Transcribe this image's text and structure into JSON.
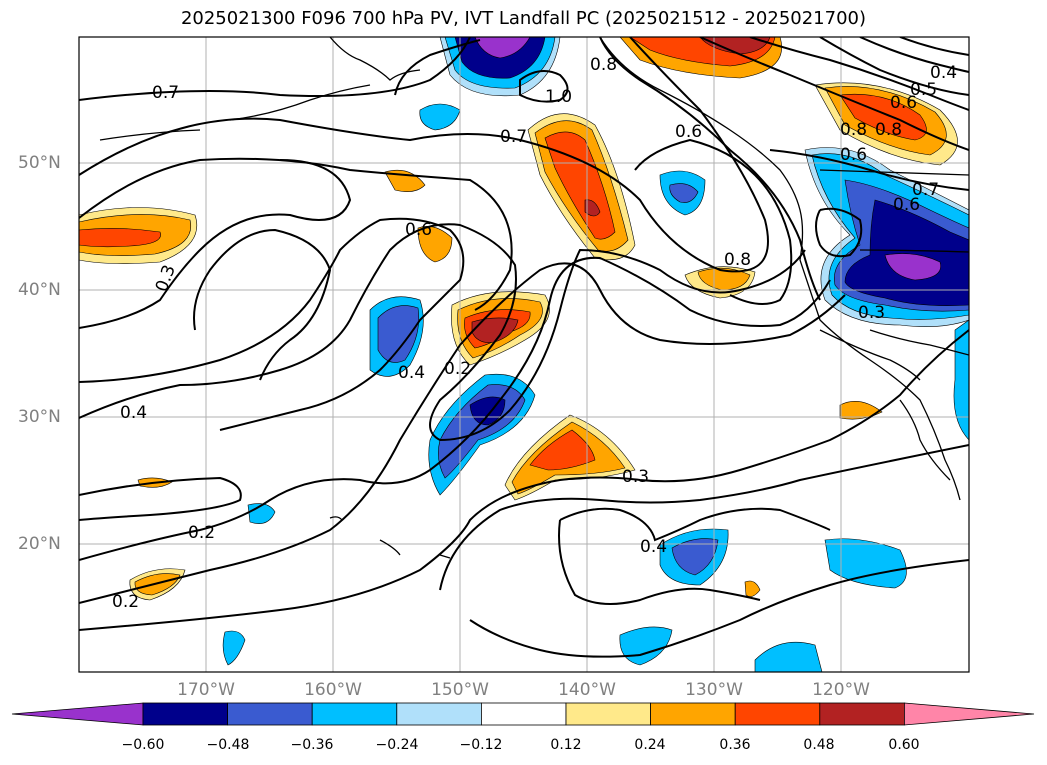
{
  "title": "2025021300 F096 700 hPa PV, IVT Landfall PC (2025021512 - 2025021700)",
  "map": {
    "lon_ticks": [
      "170°W",
      "160°W",
      "150°W",
      "140°W",
      "130°W",
      "120°W"
    ],
    "lat_ticks": [
      "50°N",
      "40°N",
      "30°N",
      "20°N"
    ],
    "contour_labels": [
      "0.7",
      "1.0",
      "0.8",
      "0.7",
      "0.6",
      "0.5",
      "0.4",
      "0.6",
      "0.8",
      "0.8",
      "0.6",
      "0.7",
      "0.6",
      "0.3",
      "0.6",
      "0.8",
      "0.4",
      "0.2",
      "0.4",
      "0.3",
      "0.2",
      "0.4",
      "0.2",
      "0.3"
    ]
  },
  "colorbar": {
    "ticks": [
      "−0.60",
      "−0.48",
      "−0.36",
      "−0.24",
      "−0.12",
      "0.12",
      "0.24",
      "0.36",
      "0.48",
      "0.60"
    ],
    "colors": [
      "#9932cc",
      "#00008b",
      "#3a5bd0",
      "#00bfff",
      "#b0e0fa",
      "#ffffff",
      "#ffe98a",
      "#ffa500",
      "#ff4500",
      "#b22222",
      "#ff85a8"
    ]
  }
}
